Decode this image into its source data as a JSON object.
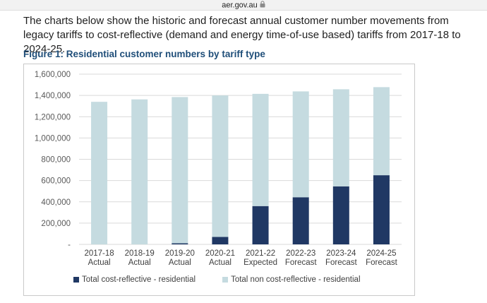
{
  "browser": {
    "url": "aer.gov.au"
  },
  "intro_text": "The charts below show the historic and forecast annual customer number movements from legacy tariffs to cost-reflective (demand and energy time-of-use based) tariffs from 2017-18 to 2024-25.",
  "figure_title": "Figure 1: Residential customer numbers by tariff type",
  "colors": {
    "cost_reflective": "#203864",
    "non_cost_reflective": "#c5dbe0",
    "gridline": "#d9d9d9",
    "title": "#1f4e79"
  },
  "chart_data": {
    "type": "bar",
    "stacked": true,
    "categories": [
      [
        "2017-18",
        "Actual"
      ],
      [
        "2018-19",
        "Actual"
      ],
      [
        "2019-20",
        "Actual"
      ],
      [
        "2020-21",
        "Actual"
      ],
      [
        "2021-22",
        "Expected"
      ],
      [
        "2022-23",
        "Forecast"
      ],
      [
        "2023-24",
        "Forecast"
      ],
      [
        "2024-25",
        "Forecast"
      ]
    ],
    "series": [
      {
        "name": "Total cost-reflective - residential",
        "values": [
          0,
          0,
          10000,
          70000,
          360000,
          443000,
          545000,
          650000
        ]
      },
      {
        "name": "Total non cost-reflective - residential",
        "values": [
          1340000,
          1363000,
          1375000,
          1330000,
          1055000,
          995000,
          913000,
          828000
        ]
      }
    ],
    "ylim": [
      0,
      1600000
    ],
    "yticks": [
      {
        "value": 0,
        "label": "-"
      },
      {
        "value": 200000,
        "label": "200,000"
      },
      {
        "value": 400000,
        "label": "400,000"
      },
      {
        "value": 600000,
        "label": "600,000"
      },
      {
        "value": 800000,
        "label": "800,000"
      },
      {
        "value": 1000000,
        "label": "1,000,000"
      },
      {
        "value": 1200000,
        "label": "1,200,000"
      },
      {
        "value": 1400000,
        "label": "1,400,000"
      },
      {
        "value": 1600000,
        "label": "1,600,000"
      }
    ],
    "grid": true,
    "legend_position": "bottom"
  }
}
